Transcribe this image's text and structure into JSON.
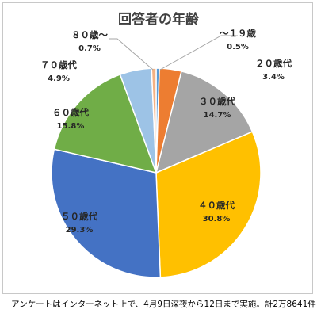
{
  "title": "回答者の年齢",
  "footnote": "アンケートはインターネット上で、4月9日深夜から12日まで実施。計2万8641件",
  "chart_data": {
    "type": "pie",
    "title": "回答者の年齢",
    "slices": [
      {
        "label": "～１９歳",
        "value": 0.5,
        "value_label": "0.5%",
        "color": "#5b9bd5"
      },
      {
        "label": "２０歳代",
        "value": 3.4,
        "value_label": "3.4%",
        "color": "#ed7d31"
      },
      {
        "label": "３０歳代",
        "value": 14.7,
        "value_label": "14.7%",
        "color": "#a5a5a5"
      },
      {
        "label": "４０歳代",
        "value": 30.8,
        "value_label": "30.8%",
        "color": "#ffc000"
      },
      {
        "label": "５０歳代",
        "value": 29.3,
        "value_label": "29.3%",
        "color": "#4472c4"
      },
      {
        "label": "６０歳代",
        "value": 15.8,
        "value_label": "15.8%",
        "color": "#70ad47"
      },
      {
        "label": "７０歳代",
        "value": 4.9,
        "value_label": "4.9%",
        "color": "#9dc3e6"
      },
      {
        "label": "８０歳～",
        "value": 0.7,
        "value_label": "0.7%",
        "color": "#f4b183"
      }
    ]
  }
}
